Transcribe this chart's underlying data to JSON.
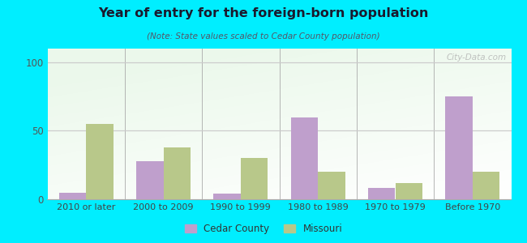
{
  "title": "Year of entry for the foreign-born population",
  "subtitle": "(Note: State values scaled to Cedar County population)",
  "categories": [
    "2010 or later",
    "2000 to 2009",
    "1990 to 1999",
    "1980 to 1989",
    "1970 to 1979",
    "Before 1970"
  ],
  "cedar_county": [
    5,
    28,
    4,
    60,
    8,
    75
  ],
  "missouri": [
    55,
    38,
    30,
    20,
    12,
    20
  ],
  "cedar_color": "#bf9fcc",
  "missouri_color": "#b8c88a",
  "background_color": "#00eeff",
  "ylim": [
    0,
    110
  ],
  "yticks": [
    0,
    50,
    100
  ],
  "bar_width": 0.35,
  "legend_cedar": "Cedar County",
  "legend_missouri": "Missouri",
  "watermark": "City-Data.com"
}
